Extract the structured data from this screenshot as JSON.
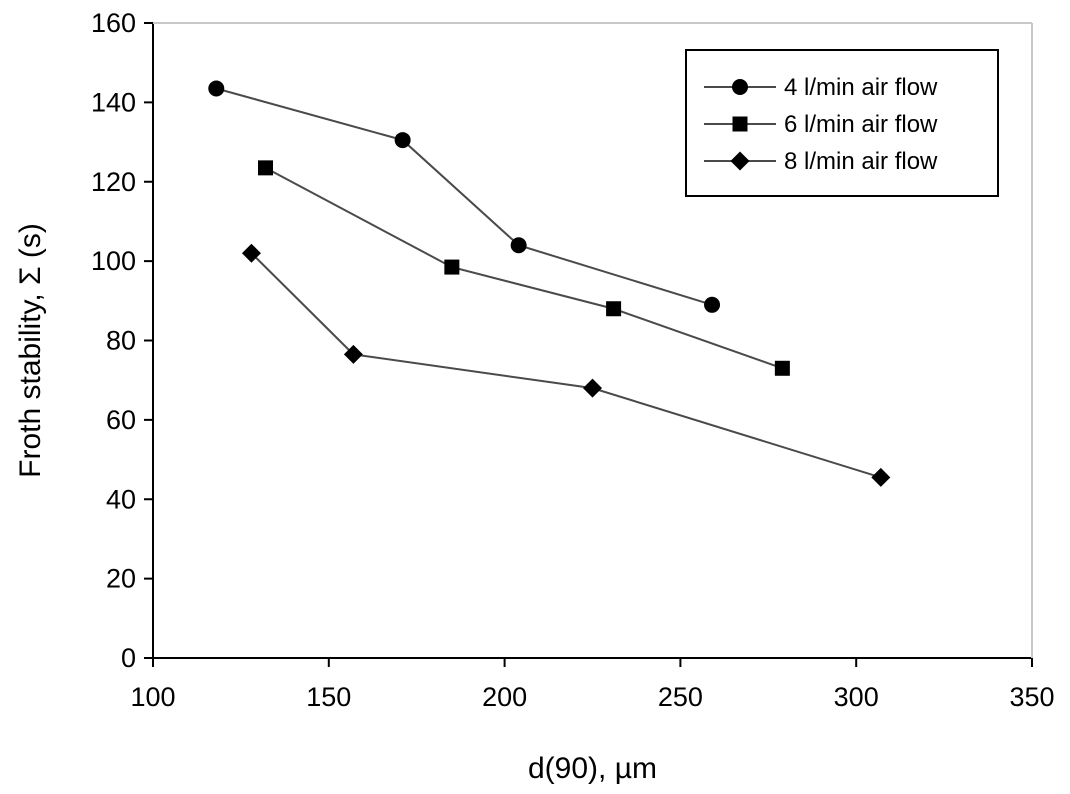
{
  "chart_data": {
    "type": "line",
    "xlabel": "d(90), µm",
    "ylabel": "Froth stability, Σ (s)",
    "xlim": [
      100,
      350
    ],
    "ylim": [
      0,
      160
    ],
    "xticks": [
      100,
      150,
      200,
      250,
      300,
      350
    ],
    "yticks": [
      0,
      20,
      40,
      60,
      80,
      100,
      120,
      140,
      160
    ],
    "grid": false,
    "legend_position": "top-right",
    "series": [
      {
        "name": "4 l/min air flow",
        "marker": "circle",
        "x": [
          118,
          171,
          204,
          259
        ],
        "y": [
          143.5,
          130.5,
          104,
          89
        ]
      },
      {
        "name": "6 l/min air flow",
        "marker": "square",
        "x": [
          132,
          185,
          231,
          279
        ],
        "y": [
          123.5,
          98.5,
          88,
          73
        ]
      },
      {
        "name": "8 l/min air flow",
        "marker": "diamond",
        "x": [
          128,
          157,
          225,
          307
        ],
        "y": [
          102,
          76.5,
          68,
          45.5
        ]
      }
    ]
  }
}
